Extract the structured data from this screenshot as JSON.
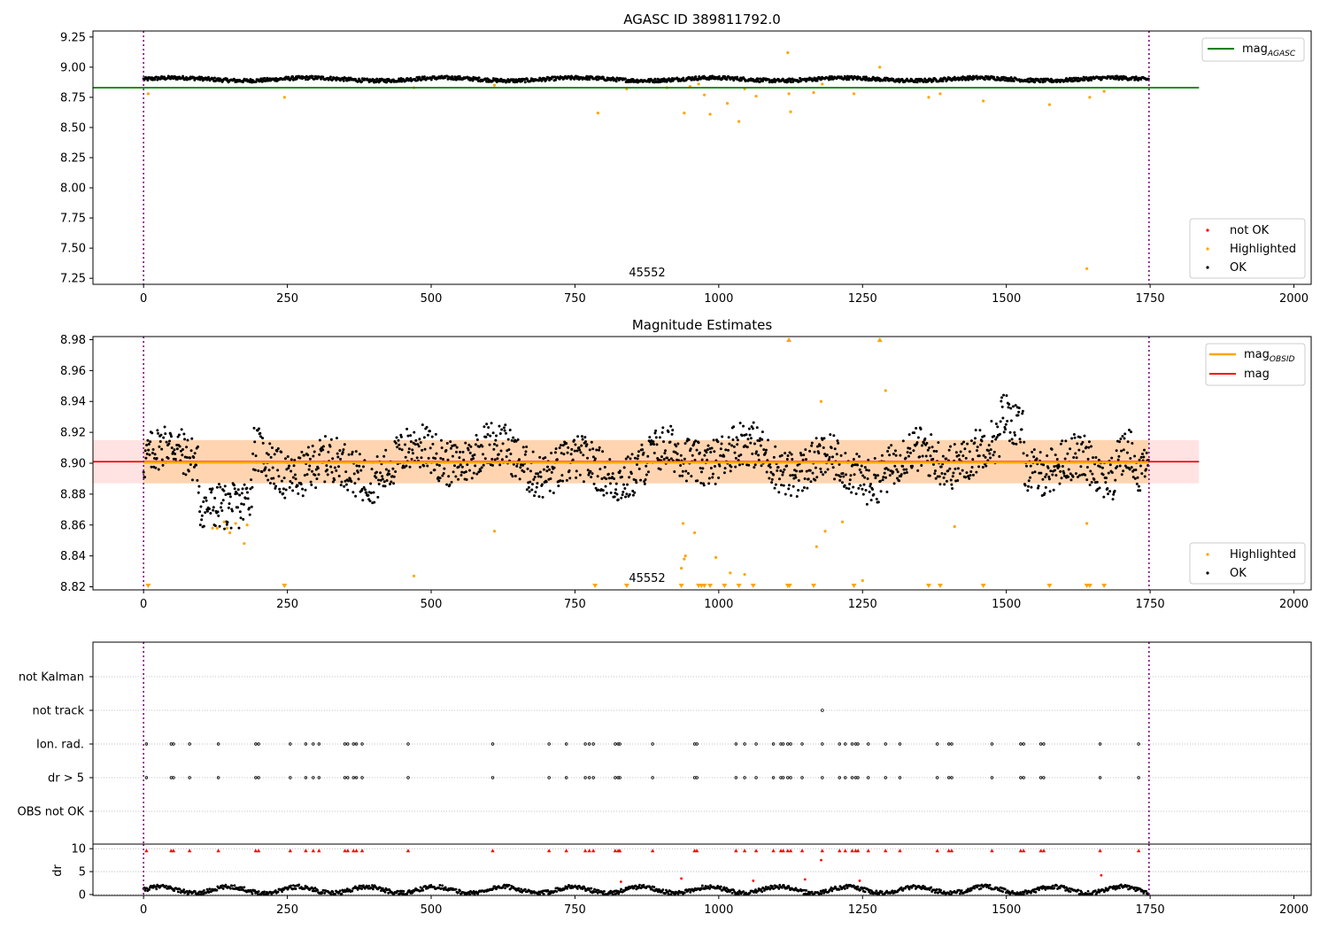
{
  "chart_data": [
    {
      "type": "scatter",
      "title": "AGASC ID 389811792.0",
      "annotation": "45552",
      "xlim": [
        -88,
        2030
      ],
      "ylim": [
        7.2,
        9.3
      ],
      "x_ticks": [
        "0",
        "250",
        "500",
        "750",
        "1000",
        "1250",
        "1500",
        "1750",
        "2000"
      ],
      "y_ticks": [
        "7.25",
        "7.50",
        "7.75",
        "8.00",
        "8.25",
        "8.50",
        "8.75",
        "9.00",
        "9.25"
      ],
      "vlines": [
        0,
        1748
      ],
      "hline": {
        "y": 8.83,
        "x_range": [
          -88,
          1835
        ],
        "color": "#008000"
      },
      "ok_band": {
        "x_range": [
          0,
          1748
        ],
        "center": 8.9,
        "noise": 0.015
      },
      "legend_upper": [
        {
          "label": "mag",
          "sub": "AGASC",
          "color": "#008000",
          "kind": "line"
        }
      ],
      "legend_lower": [
        {
          "label": "not OK",
          "color": "#ff0000",
          "kind": "dot"
        },
        {
          "label": "Highlighted",
          "color": "#ffa500",
          "kind": "dot"
        },
        {
          "label": "OK",
          "color": "#000000",
          "kind": "dot"
        }
      ],
      "highlighted": [
        [
          8,
          8.78
        ],
        [
          245,
          8.75
        ],
        [
          470,
          8.83
        ],
        [
          610,
          8.85
        ],
        [
          790,
          8.62
        ],
        [
          840,
          8.82
        ],
        [
          910,
          8.83
        ],
        [
          940,
          8.62
        ],
        [
          950,
          8.84
        ],
        [
          965,
          8.86
        ],
        [
          975,
          8.77
        ],
        [
          985,
          8.61
        ],
        [
          1015,
          8.7
        ],
        [
          1035,
          8.55
        ],
        [
          1045,
          8.82
        ],
        [
          1065,
          8.76
        ],
        [
          1120,
          9.12
        ],
        [
          1122,
          8.78
        ],
        [
          1125,
          8.63
        ],
        [
          1165,
          8.79
        ],
        [
          1180,
          8.86
        ],
        [
          1235,
          8.78
        ],
        [
          1280,
          9.0
        ],
        [
          1365,
          8.75
        ],
        [
          1385,
          8.78
        ],
        [
          1460,
          8.72
        ],
        [
          1575,
          8.69
        ],
        [
          1640,
          7.33
        ],
        [
          1645,
          8.75
        ],
        [
          1670,
          8.8
        ]
      ]
    },
    {
      "type": "scatter",
      "title": "Magnitude Estimates",
      "annotation": "45552",
      "xlim": [
        -88,
        2030
      ],
      "ylim": [
        8.818,
        8.982
      ],
      "x_ticks": [
        "0",
        "250",
        "500",
        "750",
        "1000",
        "1250",
        "1500",
        "1750",
        "2000"
      ],
      "y_ticks": [
        "8.82",
        "8.84",
        "8.86",
        "8.88",
        "8.90",
        "8.92",
        "8.94",
        "8.96",
        "8.98"
      ],
      "vlines": [
        0,
        1748
      ],
      "mag_obsid": {
        "y": 8.9005,
        "x_range": [
          0,
          1748
        ],
        "band": [
          8.887,
          8.915
        ],
        "color": "#ffa500"
      },
      "mag": {
        "y": 8.901,
        "x_range": [
          -88,
          1835
        ],
        "band": [
          8.887,
          8.915
        ],
        "color": "#ff0000"
      },
      "legend_upper": [
        {
          "label": "mag",
          "sub": "OBSID",
          "color": "#ffa500",
          "kind": "line"
        },
        {
          "label": "mag",
          "sub": "",
          "color": "#ff0000",
          "kind": "line"
        }
      ],
      "legend_lower": [
        {
          "label": "Highlighted",
          "color": "#ffa500",
          "kind": "dot"
        },
        {
          "label": "OK",
          "color": "#000000",
          "kind": "dot"
        }
      ],
      "highlighted": [
        [
          120,
          8.858
        ],
        [
          128,
          8.858
        ],
        [
          140,
          8.862
        ],
        [
          145,
          8.858
        ],
        [
          150,
          8.855
        ],
        [
          160,
          8.861
        ],
        [
          175,
          8.848
        ],
        [
          180,
          8.86
        ],
        [
          470,
          8.827
        ],
        [
          610,
          8.856
        ],
        [
          935,
          8.832
        ],
        [
          938,
          8.861
        ],
        [
          940,
          8.838
        ],
        [
          942,
          8.84
        ],
        [
          958,
          8.855
        ],
        [
          995,
          8.839
        ],
        [
          1020,
          8.829
        ],
        [
          1045,
          8.828
        ],
        [
          1170,
          8.846
        ],
        [
          1178,
          8.94
        ],
        [
          1185,
          8.856
        ],
        [
          1215,
          8.862
        ],
        [
          1250,
          8.824
        ],
        [
          1290,
          8.947
        ],
        [
          1410,
          8.859
        ],
        [
          1640,
          8.861
        ]
      ],
      "offscale_low": [
        8,
        245,
        785,
        840,
        935,
        965,
        970,
        975,
        985,
        1010,
        1035,
        1060,
        1120,
        1123,
        1165,
        1235,
        1365,
        1385,
        1460,
        1575,
        1640,
        1645,
        1670
      ],
      "offscale_high": [
        1122,
        1280
      ]
    },
    {
      "type": "scatter",
      "title": "",
      "xlim": [
        -88,
        2030
      ],
      "categories": [
        "not Kalman",
        "not track",
        "Ion. rad.",
        "dr > 5",
        "OBS not OK"
      ],
      "vlines": [
        0,
        1748
      ],
      "not_track_x": [
        1180
      ],
      "ion_rad_x": [
        5,
        48,
        52,
        80,
        130,
        195,
        200,
        255,
        282,
        295,
        305,
        350,
        355,
        365,
        370,
        380,
        460,
        607,
        705,
        735,
        768,
        775,
        782,
        820,
        825,
        828,
        885,
        958,
        962,
        1030,
        1045,
        1065,
        1095,
        1108,
        1112,
        1120,
        1125,
        1145,
        1180,
        1210,
        1220,
        1232,
        1238,
        1242,
        1260,
        1290,
        1315,
        1380,
        1400,
        1405,
        1475,
        1525,
        1530,
        1560,
        1565,
        1663,
        1730
      ]
    },
    {
      "type": "scatter",
      "title": "",
      "xlim": [
        -88,
        2030
      ],
      "ylim": [
        -0.2,
        11
      ],
      "ylabel": "dr",
      "x_ticks": [
        "0",
        "250",
        "500",
        "750",
        "1000",
        "1250",
        "1500",
        "1750",
        "2000"
      ],
      "y_ticks": [
        "0",
        "5",
        "10"
      ],
      "vlines": [
        0,
        1748
      ],
      "not_ok_high_x": [
        5,
        48,
        52,
        80,
        130,
        195,
        200,
        255,
        282,
        295,
        305,
        350,
        355,
        365,
        370,
        380,
        460,
        607,
        705,
        735,
        768,
        775,
        782,
        820,
        825,
        828,
        885,
        958,
        962,
        1030,
        1045,
        1065,
        1095,
        1108,
        1112,
        1120,
        1125,
        1145,
        1180,
        1210,
        1220,
        1232,
        1238,
        1242,
        1260,
        1290,
        1315,
        1380,
        1400,
        1405,
        1475,
        1525,
        1530,
        1560,
        1565,
        1663,
        1730
      ],
      "not_ok_other": [
        [
          830,
          2.8
        ],
        [
          935,
          3.5
        ],
        [
          1060,
          3.0
        ],
        [
          1150,
          3.3
        ],
        [
          1178,
          7.5
        ],
        [
          1245,
          3.0
        ],
        [
          1665,
          4.2
        ]
      ]
    }
  ]
}
